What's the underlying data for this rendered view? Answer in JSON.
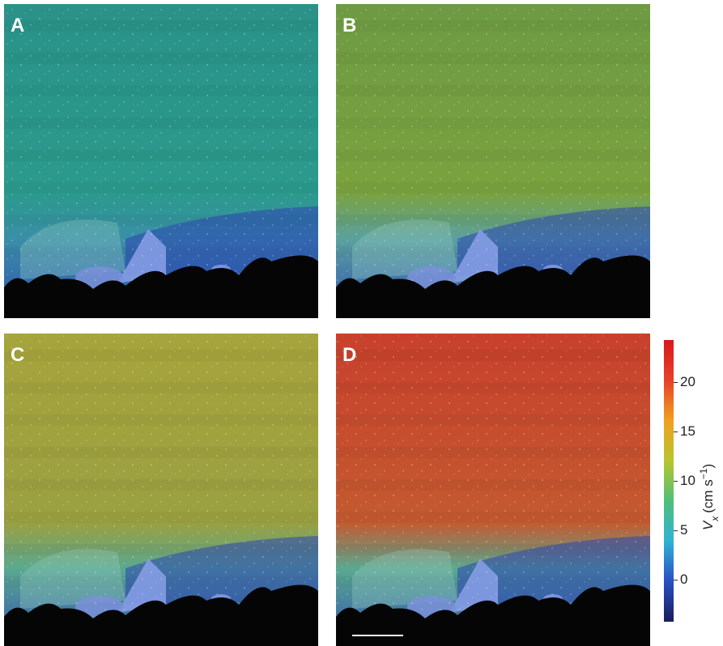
{
  "panels": [
    {
      "label": "A"
    },
    {
      "label": "B"
    },
    {
      "label": "C"
    },
    {
      "label": "D"
    }
  ],
  "colorbar": {
    "ylim": [
      -4.2,
      24.3
    ],
    "yticks": [
      0,
      5,
      10,
      15,
      20
    ],
    "colormap": [
      "#1a1c5c",
      "#2a4fc4",
      "#2fb2d6",
      "#4fbf7a",
      "#b8c52e",
      "#f0a020",
      "#e8402a",
      "#d8181c"
    ],
    "axis_label": {
      "symbol": "V",
      "subscript": "x",
      "open": "(cm s",
      "exponent": "−1",
      "close": ")"
    }
  }
}
